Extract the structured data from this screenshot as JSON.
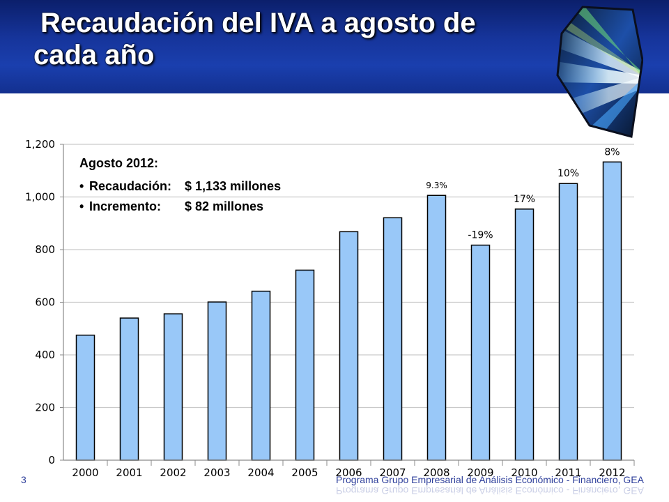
{
  "slide": {
    "title_line1": "Recaudación del IVA a agosto de",
    "title_line2": "cada año",
    "page_number": "3",
    "footer": "Programa Grupo Empresarial de Análisis Económico - Financiero, GEA"
  },
  "annotation": {
    "heading": "Agosto 2012:",
    "rows": [
      {
        "label": "Recaudación:",
        "value": "$ 1,133 millones"
      },
      {
        "label": "Incremento:",
        "value": "$ 82 millones"
      }
    ]
  },
  "colors": {
    "bar_fill": "#99c8f8",
    "bar_stroke": "#000000",
    "header": "#1a3fae",
    "footer": "#2e3f9b"
  },
  "chart_data": {
    "type": "bar",
    "title": "",
    "xlabel": "",
    "ylabel": "",
    "categories": [
      "2000",
      "2001",
      "2002",
      "2003",
      "2004",
      "2005",
      "2006",
      "2007",
      "2008",
      "2009",
      "2010",
      "2011",
      "2012"
    ],
    "values": [
      475,
      540,
      556,
      601,
      642,
      722,
      868,
      921,
      1006,
      817,
      954,
      1051,
      1133
    ],
    "data_labels": [
      "",
      "",
      "",
      "",
      "",
      "",
      "",
      "",
      "9.3%",
      "-19%",
      "17%",
      "10%",
      "8%"
    ],
    "ylim": [
      0,
      1200
    ],
    "yticks": [
      0,
      200,
      400,
      600,
      800,
      1000,
      1200
    ],
    "ytick_labels": [
      "0",
      "200",
      "400",
      "600",
      "800",
      "1,000",
      "1,200"
    ],
    "grid": true,
    "legend": "none"
  }
}
